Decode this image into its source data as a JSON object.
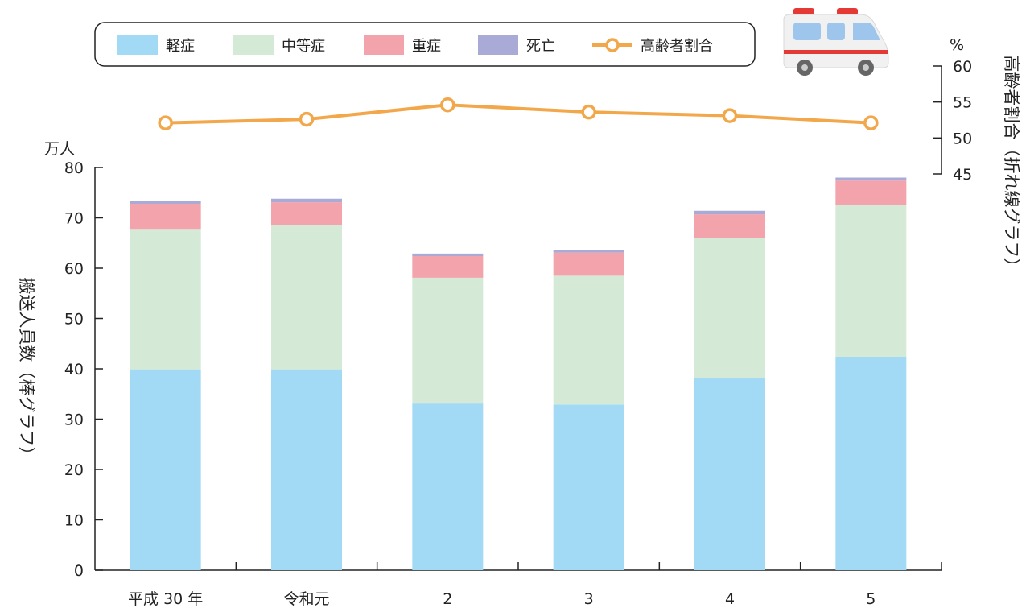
{
  "chart_data": {
    "type": "bar",
    "stacked": true,
    "categories": [
      "平成 30 年",
      "令和元",
      "2",
      "3",
      "4",
      "5"
    ],
    "series": [
      {
        "name": "軽症",
        "color": "#a2d9f5",
        "values": [
          39.9,
          39.9,
          33.1,
          32.9,
          38.1,
          42.4
        ]
      },
      {
        "name": "中等症",
        "color": "#d4ead6",
        "values": [
          27.9,
          28.6,
          25.0,
          25.6,
          27.9,
          30.1
        ]
      },
      {
        "name": "重症",
        "color": "#f2a3ab",
        "values": [
          5.0,
          4.6,
          4.3,
          4.6,
          4.7,
          4.9
        ]
      },
      {
        "name": "死亡",
        "color": "#a9abd6",
        "values": [
          0.5,
          0.7,
          0.5,
          0.5,
          0.7,
          0.6
        ]
      }
    ],
    "line": {
      "name": "高齢者割合",
      "color": "#f2a74a",
      "values": [
        52.1,
        52.6,
        54.6,
        53.6,
        53.1,
        52.1
      ]
    },
    "y_left": {
      "unit": "万人",
      "label": "搬送人員数（棒グラフ）",
      "min": 0,
      "max": 80,
      "ticks": [
        0,
        10,
        20,
        30,
        40,
        50,
        60,
        70,
        80
      ]
    },
    "y_right": {
      "unit": "%",
      "label": "高齢者割合（折れ線グラフ）",
      "min": 45,
      "max": 60,
      "ticks": [
        45,
        50,
        55,
        60
      ]
    },
    "legend_position": "top",
    "grid": false
  },
  "decor": {
    "icon": "ambulance-icon"
  }
}
